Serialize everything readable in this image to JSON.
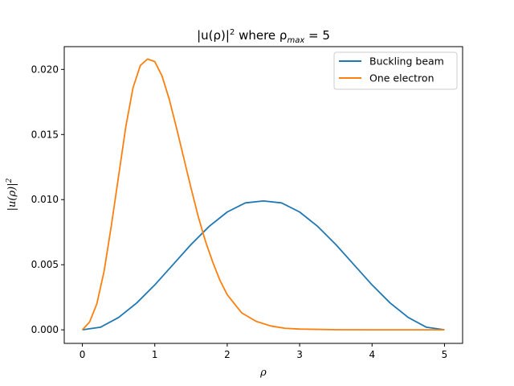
{
  "chart_data": {
    "type": "line",
    "title": "|u(ρ)|² where ρ_max = 5",
    "title_parts": {
      "main": "|u(ρ)|",
      "sup": "2",
      "mid": " where ρ",
      "sub": "max",
      "tail": " = 5"
    },
    "xlabel": "ρ",
    "ylabel": "|u(ρ)|²",
    "ylabel_parts": {
      "main": "|u(ρ)|",
      "sup": "2"
    },
    "xlim": [
      -0.25,
      5.25
    ],
    "ylim": [
      -0.00104,
      0.02175
    ],
    "xticks": [
      0,
      1,
      2,
      3,
      4,
      5
    ],
    "xtick_labels": [
      "0",
      "1",
      "2",
      "3",
      "4",
      "5"
    ],
    "yticks": [
      0.0,
      0.005,
      0.01,
      0.015,
      0.02
    ],
    "ytick_labels": [
      "0.000",
      "0.005",
      "0.010",
      "0.015",
      "0.020"
    ],
    "grid": false,
    "legend_placement": "top-right",
    "series": [
      {
        "name": "Buckling beam",
        "color": "#1f77b4",
        "x": [
          0,
          0.25,
          0.5,
          0.75,
          1.0,
          1.25,
          1.5,
          1.75,
          2.0,
          2.25,
          2.5,
          2.75,
          3.0,
          3.25,
          3.5,
          3.75,
          4.0,
          4.25,
          4.5,
          4.75,
          5.0
        ],
        "y": [
          0,
          0.0002,
          0.00095,
          0.00206,
          0.00345,
          0.005,
          0.00655,
          0.00794,
          0.00905,
          0.00975,
          0.0099,
          0.00975,
          0.00905,
          0.00794,
          0.00655,
          0.005,
          0.00345,
          0.00206,
          0.00095,
          0.0002,
          0
        ]
      },
      {
        "name": "One electron",
        "color": "#ff7f0e",
        "x": [
          0,
          0.1,
          0.2,
          0.3,
          0.4,
          0.5,
          0.6,
          0.7,
          0.8,
          0.9,
          1.0,
          1.1,
          1.2,
          1.3,
          1.4,
          1.5,
          1.6,
          1.7,
          1.8,
          1.9,
          2.0,
          2.2,
          2.4,
          2.6,
          2.8,
          3.0,
          3.5,
          4.0,
          4.5,
          5.0
        ],
        "y": [
          0,
          0.0006,
          0.002,
          0.0045,
          0.008,
          0.0118,
          0.0156,
          0.0186,
          0.0203,
          0.0208,
          0.0206,
          0.0195,
          0.0177,
          0.0155,
          0.0132,
          0.0109,
          0.0087,
          0.0068,
          0.0052,
          0.0038,
          0.0027,
          0.0013,
          0.00065,
          0.0003,
          0.00012,
          6e-05,
          1e-05,
          0,
          0,
          0
        ]
      }
    ]
  }
}
